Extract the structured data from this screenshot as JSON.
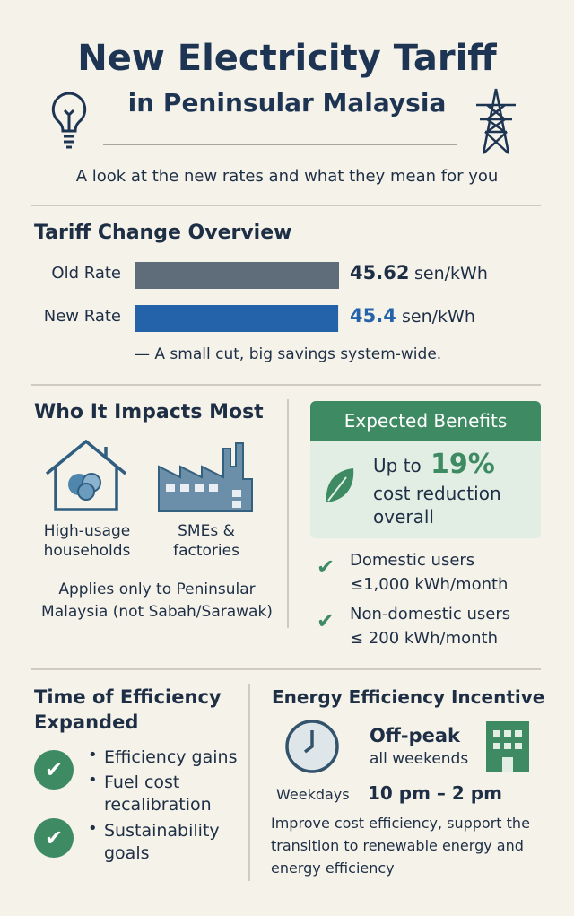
{
  "header": {
    "title": "New Electricity Tariff",
    "subtitle": "in Peninsular Malaysia",
    "tagline": "A look at the new rates and what they mean for you"
  },
  "overview": {
    "title": "Tariff Change Overview",
    "rows": [
      {
        "label": "Old Rate",
        "value": 45.62,
        "unit": "sen/kWh",
        "color": "#5f6d7b"
      },
      {
        "label": "New Rate",
        "value": 45.4,
        "unit": "sen/kWh",
        "color": "#2463a9"
      }
    ],
    "note": "— A small cut, big savings system-wide."
  },
  "impacts": {
    "title": "Who It Impacts Most",
    "groups": [
      [
        "High-usage",
        "households"
      ],
      [
        "SMEs &",
        "factories"
      ]
    ],
    "note": [
      "Applies only to Peninsular",
      "Malaysia (not Sabah/Sarawak)"
    ]
  },
  "benefits": {
    "title": "Expected Benefits",
    "lead": "Up to",
    "figure": "19%",
    "lines": [
      "cost reduction",
      "overall"
    ],
    "checks": [
      [
        "Domestic users",
        "≤1,000 kWh/month"
      ],
      [
        "Non-domestic users",
        "≤ 200 kWh/month"
      ]
    ]
  },
  "efficiency": {
    "title": [
      "Time of Efficiency",
      "Expanded"
    ],
    "bullets": [
      [
        "Efficiency gains"
      ],
      [
        "Fuel cost",
        "recalibration"
      ],
      [
        "Sustainability",
        "goals"
      ]
    ]
  },
  "incentive": {
    "title": "Energy Efficiency Incentive",
    "offpeak": "Off-peak",
    "weekends": "all weekends",
    "weekdays": "Weekdays",
    "hours": "10 pm – 2 pm",
    "text": [
      "Improve cost efficiency, support the",
      "transition to renewable energy and",
      "energy efficiency"
    ]
  }
}
